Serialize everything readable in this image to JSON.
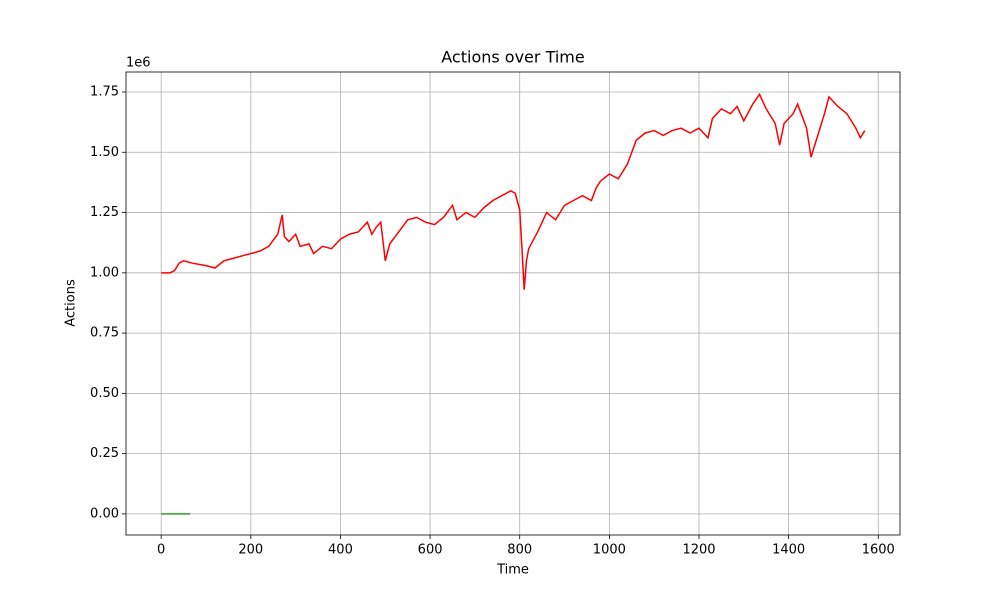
{
  "chart_data": {
    "type": "line",
    "title": "Actions over Time",
    "x_label": "Time",
    "y_label": "Actions",
    "y_offset_label": "1e6",
    "xlim": [
      -78.5,
      1648.5
    ],
    "xticks": [
      0,
      200,
      400,
      600,
      800,
      1000,
      1200,
      1400,
      1600
    ],
    "ylim": [
      -87500,
      1833000
    ],
    "yticks": [
      {
        "value": 0,
        "label": "0.00"
      },
      {
        "value": 250000,
        "label": "0.25"
      },
      {
        "value": 500000,
        "label": "0.50"
      },
      {
        "value": 750000,
        "label": "0.75"
      },
      {
        "value": 1000000,
        "label": "1.00"
      },
      {
        "value": 1250000,
        "label": "1.25"
      },
      {
        "value": 1500000,
        "label": "1.50"
      },
      {
        "value": 1750000,
        "label": "1.75"
      }
    ],
    "grid": true,
    "series": [
      {
        "color": "#ff0000",
        "x": [
          0,
          20,
          30,
          40,
          50,
          70,
          100,
          120,
          140,
          160,
          180,
          200,
          220,
          240,
          260,
          265,
          270,
          275,
          285,
          300,
          310,
          330,
          340,
          360,
          380,
          400,
          420,
          440,
          460,
          470,
          480,
          490,
          500,
          510,
          530,
          550,
          570,
          590,
          610,
          630,
          650,
          660,
          680,
          700,
          720,
          740,
          760,
          780,
          790,
          800,
          805,
          810,
          815,
          820,
          840,
          860,
          880,
          900,
          920,
          940,
          960,
          970,
          980,
          1000,
          1020,
          1040,
          1060,
          1080,
          1100,
          1120,
          1140,
          1160,
          1180,
          1200,
          1220,
          1230,
          1250,
          1270,
          1285,
          1300,
          1320,
          1335,
          1350,
          1370,
          1380,
          1390,
          1410,
          1420,
          1440,
          1450,
          1460,
          1480,
          1490,
          1510,
          1530,
          1550,
          1560,
          1570
        ],
        "values": [
          1000000,
          1000000,
          1010000,
          1040000,
          1050000,
          1040000,
          1030000,
          1020000,
          1050000,
          1060000,
          1070000,
          1080000,
          1090000,
          1110000,
          1160000,
          1200000,
          1240000,
          1150000,
          1130000,
          1160000,
          1110000,
          1120000,
          1080000,
          1110000,
          1100000,
          1140000,
          1160000,
          1170000,
          1210000,
          1160000,
          1190000,
          1210000,
          1050000,
          1120000,
          1170000,
          1220000,
          1230000,
          1210000,
          1200000,
          1230000,
          1280000,
          1220000,
          1250000,
          1230000,
          1270000,
          1300000,
          1320000,
          1340000,
          1330000,
          1260000,
          1100000,
          930000,
          1050000,
          1100000,
          1170000,
          1250000,
          1220000,
          1280000,
          1300000,
          1320000,
          1300000,
          1350000,
          1380000,
          1410000,
          1390000,
          1450000,
          1550000,
          1580000,
          1590000,
          1570000,
          1590000,
          1600000,
          1580000,
          1600000,
          1560000,
          1640000,
          1680000,
          1660000,
          1690000,
          1630000,
          1700000,
          1740000,
          1680000,
          1620000,
          1530000,
          1620000,
          1660000,
          1700000,
          1600000,
          1480000,
          1540000,
          1660000,
          1730000,
          1690000,
          1660000,
          1600000,
          1560000,
          1590000
        ]
      },
      {
        "color": "#2ca02c",
        "x": [
          0,
          65
        ],
        "values": [
          0,
          0
        ]
      }
    ]
  }
}
